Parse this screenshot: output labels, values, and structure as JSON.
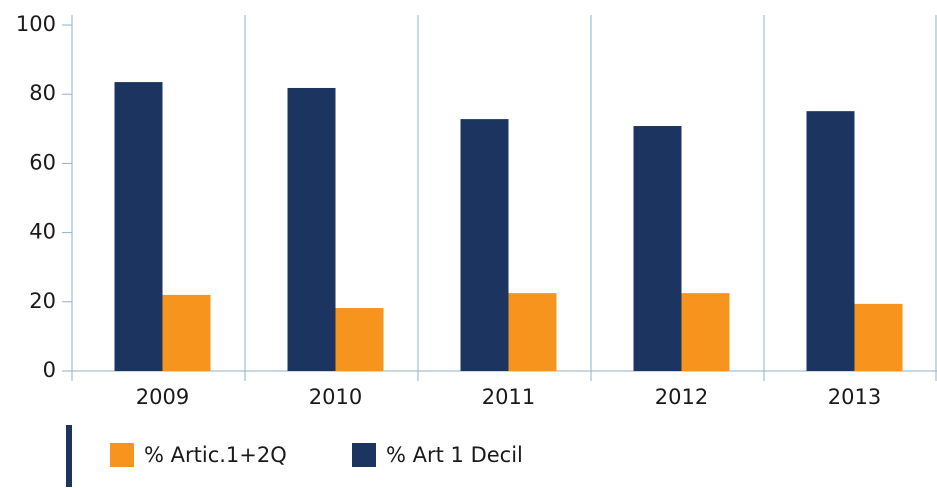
{
  "chart_data": {
    "type": "bar",
    "categories": [
      "2009",
      "2010",
      "2011",
      "2012",
      "2013"
    ],
    "series": [
      {
        "name": "% Artic.1+2Q",
        "color": "#f7941d",
        "values": [
          22.0,
          18.2,
          22.5,
          22.5,
          19.4
        ]
      },
      {
        "name": "% Art 1 Decil",
        "color": "#1b3560",
        "values": [
          83.5,
          81.8,
          72.8,
          70.8,
          75.1
        ]
      }
    ],
    "ylim": [
      0,
      100
    ],
    "yticks": [
      0,
      20,
      40,
      60,
      80,
      100
    ],
    "grid": true
  }
}
